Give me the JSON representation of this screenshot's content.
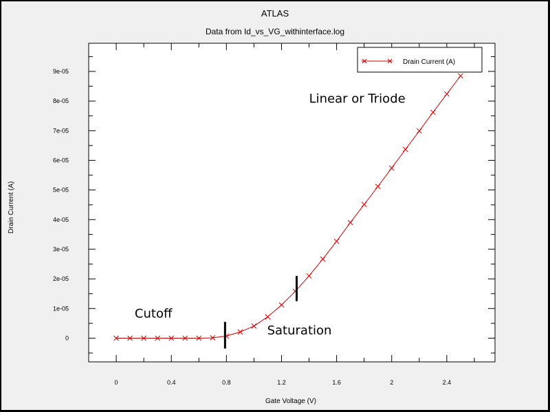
{
  "colors": {
    "series": "#cc0000",
    "axis": "#000000",
    "background": "#f0f0f0",
    "plot_area": "#ffffff"
  },
  "chart_data": {
    "type": "line",
    "title": "ATLAS",
    "subtitle": "Data from Id_vs_VG_withinterface.log",
    "xlabel": "Gate Voltage (V)",
    "ylabel": "Drain Current (A)",
    "xlim": [
      -0.2,
      2.75
    ],
    "ylim": [
      -8e-06,
      9.95e-05
    ],
    "x_ticks": [
      0,
      0.4,
      0.8,
      1.2,
      1.6,
      2,
      2.4
    ],
    "x_tick_labels": [
      "0",
      "0.4",
      "0.8",
      "1.2",
      "1.6",
      "2",
      "2.4"
    ],
    "y_ticks": [
      0,
      1e-05,
      2e-05,
      3e-05,
      4e-05,
      5e-05,
      6e-05,
      7e-05,
      8e-05,
      9e-05
    ],
    "y_tick_labels": [
      "0",
      "1e-05",
      "2e-05",
      "3e-05",
      "4e-05",
      "5e-05",
      "6e-05",
      "7e-05",
      "8e-05",
      "9e-05"
    ],
    "grid": false,
    "legend_position": "top-right",
    "series": [
      {
        "name": "Drain Current (A)",
        "marker": "x",
        "x": [
          0,
          0.1,
          0.2,
          0.3,
          0.4,
          0.5,
          0.6,
          0.7,
          0.8,
          0.9,
          1.0,
          1.1,
          1.2,
          1.3,
          1.4,
          1.5,
          1.6,
          1.7,
          1.8,
          1.9,
          2.0,
          2.1,
          2.2,
          2.3,
          2.4,
          2.5
        ],
        "y": [
          0,
          0,
          0,
          0,
          0,
          0,
          0,
          1e-07,
          7e-07,
          2.1e-06,
          4.1e-06,
          7.2e-06,
          1.12e-05,
          1.58e-05,
          2.1e-05,
          2.67e-05,
          3.27e-05,
          3.9e-05,
          4.51e-05,
          5.12e-05,
          5.74e-05,
          6.37e-05,
          6.99e-05,
          7.62e-05,
          8.24e-05,
          8.85e-05
        ]
      }
    ],
    "annotations": [
      {
        "text": "Cutoff",
        "x": 0.27,
        "y": 7e-06
      },
      {
        "text": "Saturation",
        "x": 1.33,
        "y": 1.3e-06
      },
      {
        "text": "Linear or Triode",
        "x": 1.75,
        "y": 7.95e-05
      }
    ],
    "region_markers": [
      {
        "x": 0.79,
        "y_from": -3.5e-06,
        "y_to": 5.5e-06
      },
      {
        "x": 1.31,
        "y_from": 1.25e-05,
        "y_to": 2.1e-05
      }
    ]
  }
}
